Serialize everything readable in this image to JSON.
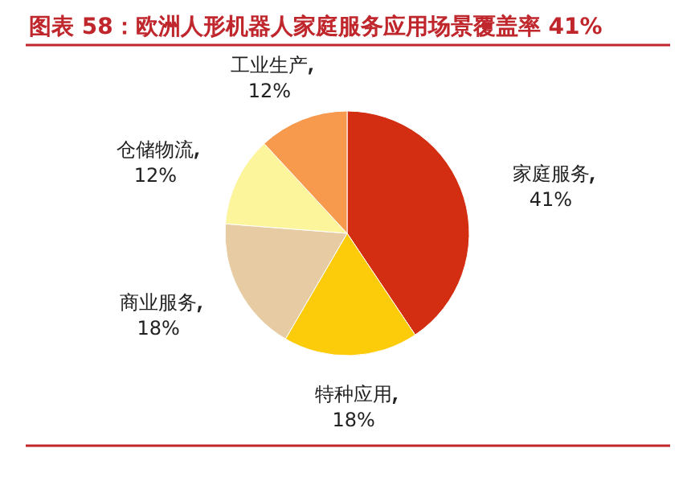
{
  "chart_data": {
    "type": "pie",
    "title": "图表 58：欧洲人形机器人家庭服务应用场景覆盖率 41%",
    "categories": [
      "家庭服务",
      "特种应用",
      "商业服务",
      "仓储物流",
      "工业生产"
    ],
    "values": [
      41,
      18,
      18,
      12,
      12
    ],
    "value_labels": [
      "41%",
      "18%",
      "18%",
      "12%",
      "12%"
    ],
    "colors": [
      "#d42e12",
      "#fccb0a",
      "#e6cba3",
      "#fcf59c",
      "#f79a4e"
    ]
  }
}
